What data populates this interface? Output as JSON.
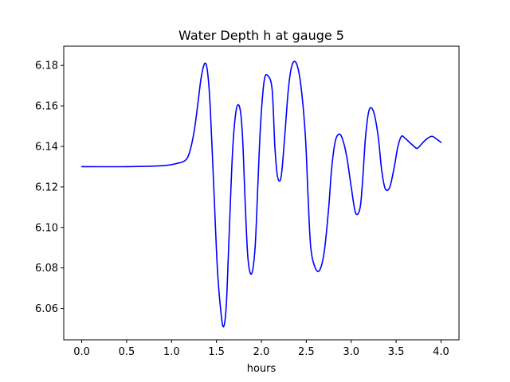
{
  "chart_data": {
    "type": "line",
    "title": "Water Depth h at gauge 5",
    "xlabel": "hours",
    "ylabel": "",
    "xlim": [
      -0.2,
      4.2
    ],
    "ylim": [
      6.0445,
      6.1895
    ],
    "xticks": [
      0.0,
      0.5,
      1.0,
      1.5,
      2.0,
      2.5,
      3.0,
      3.5,
      4.0
    ],
    "xtick_labels": [
      "0.0",
      "0.5",
      "1.0",
      "1.5",
      "2.0",
      "2.5",
      "3.0",
      "3.5",
      "4.0"
    ],
    "yticks": [
      6.06,
      6.08,
      6.1,
      6.12,
      6.14,
      6.16,
      6.18
    ],
    "ytick_labels": [
      "6.06",
      "6.08",
      "6.10",
      "6.12",
      "6.14",
      "6.16",
      "6.18"
    ],
    "grid": false,
    "colors": {
      "line": "#0000ff",
      "axes": "#000000",
      "background": "#ffffff"
    },
    "series": [
      {
        "name": "",
        "x": [
          0.0,
          0.5,
          0.9,
          1.05,
          1.15,
          1.2,
          1.25,
          1.29,
          1.33,
          1.37,
          1.4,
          1.43,
          1.47,
          1.51,
          1.55,
          1.58,
          1.61,
          1.64,
          1.68,
          1.72,
          1.76,
          1.79,
          1.82,
          1.85,
          1.89,
          1.93,
          1.96,
          1.99,
          2.03,
          2.07,
          2.12,
          2.15,
          2.18,
          2.22,
          2.26,
          2.3,
          2.34,
          2.39,
          2.44,
          2.49,
          2.52,
          2.55,
          2.6,
          2.65,
          2.7,
          2.75,
          2.78,
          2.82,
          2.86,
          2.9,
          2.95,
          3.0,
          3.05,
          3.1,
          3.13,
          3.16,
          3.2,
          3.25,
          3.3,
          3.34,
          3.38,
          3.43,
          3.48,
          3.52,
          3.56,
          3.6,
          3.65,
          3.7,
          3.73,
          3.76,
          3.8,
          3.85,
          3.9,
          3.94,
          3.97,
          4.0
        ],
        "y": [
          6.13,
          6.13,
          6.1305,
          6.1315,
          6.133,
          6.137,
          6.147,
          6.16,
          6.174,
          6.181,
          6.177,
          6.16,
          6.12,
          6.08,
          6.058,
          6.051,
          6.062,
          6.095,
          6.138,
          6.158,
          6.159,
          6.145,
          6.112,
          6.085,
          6.077,
          6.09,
          6.12,
          6.15,
          6.172,
          6.175,
          6.168,
          6.14,
          6.125,
          6.125,
          6.145,
          6.168,
          6.18,
          6.181,
          6.17,
          6.145,
          6.115,
          6.09,
          6.08,
          6.079,
          6.088,
          6.11,
          6.128,
          6.142,
          6.146,
          6.144,
          6.135,
          6.12,
          6.107,
          6.11,
          6.125,
          6.145,
          6.158,
          6.157,
          6.145,
          6.128,
          6.119,
          6.12,
          6.13,
          6.14,
          6.145,
          6.144,
          6.142,
          6.14,
          6.139,
          6.14,
          6.142,
          6.144,
          6.145,
          6.144,
          6.143,
          6.142
        ]
      }
    ]
  }
}
